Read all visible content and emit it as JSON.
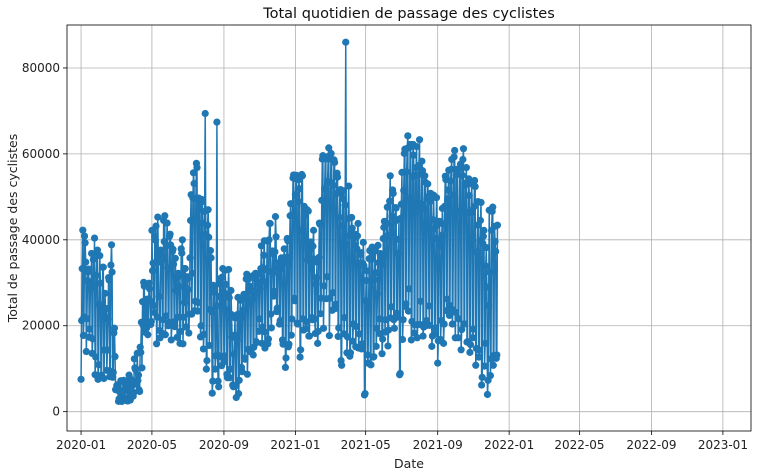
{
  "chart_data": {
    "type": "line",
    "title": "Total quotidien de passage des cyclistes",
    "xlabel": "Date",
    "ylabel": "Total de passage des cyclistes",
    "xlim": [
      "2019-12-08",
      "2023-02-18"
    ],
    "ylim": [
      -4500,
      90000
    ],
    "grid": true,
    "x_ticks": [
      "2020-01",
      "2020-05",
      "2020-09",
      "2021-01",
      "2021-05",
      "2021-09",
      "2022-01",
      "2022-05",
      "2022-09",
      "2023-01"
    ],
    "x_tick_dates": [
      "2020-01-01",
      "2020-05-01",
      "2020-09-01",
      "2021-01-01",
      "2021-05-01",
      "2021-09-01",
      "2022-01-01",
      "2022-05-01",
      "2022-09-01",
      "2023-01-01"
    ],
    "y_ticks": [
      0,
      20000,
      40000,
      60000,
      80000
    ],
    "y_tick_labels": [
      "0",
      "20000",
      "40000",
      "60000",
      "80000"
    ],
    "series": [
      {
        "color": "#1f77b4",
        "x_start": "2020-01-01",
        "x_step_days": 1,
        "values": [
          7530,
          21216,
          33286,
          42231,
          17751,
          22001,
          40874,
          39311,
          34812,
          14000,
          21633,
          30522,
          32506,
          33185,
          17324,
          19223,
          29622,
          28806,
          36826,
          13562,
          16963,
          35426,
          28815,
          40405,
          8599,
          12716,
          31722,
          36815,
          37591,
          7522,
          10941,
          24972,
          36311,
          29893,
          8200,
          8519,
          23718,
          33617,
          33624,
          7722,
          14346,
          27532,
          21911,
          23983,
          9617,
          14346,
          21531,
          31209,
          30623,
          8137,
          9419,
          34117,
          38838,
          32500,
          8004,
          9128,
          18325,
          19434,
          12836,
          5122,
          5138,
          6052,
          6235,
          5500,
          2400,
          3000,
          4600,
          3200,
          7200,
          2400,
          2400,
          4800,
          7100,
          7300,
          3200,
          3000,
          6300,
          5500,
          6200,
          2500,
          2500,
          4800,
          8500,
          7600,
          2700,
          3300,
          6800,
          7400,
          6200,
          3600,
          4400,
          12300,
          10200,
          9800,
          6400,
          6500,
          13600,
          7200,
          8500,
          5100,
          4700,
          15000,
          13800,
          20800,
          10200,
          25600,
          20100,
          30100,
          29200,
          18500,
          21000,
          25800,
          19500,
          26200,
          17900,
          20500,
          29900,
          28600,
          25800,
          20300,
          21000,
          42200,
          32800,
          34600,
          24700,
          23100,
          40800,
          39900,
          43200,
          15800,
          22000,
          45300,
          34800,
          26800,
          18900,
          17200,
          37600,
          36300,
          35300,
          18200,
          21400,
          44500,
          39600,
          45600,
          17900,
          22300,
          38600,
          43900,
          33400,
          20000,
          20800,
          40800,
          41300,
          38800,
          16700,
          20100,
          37300,
          37800,
          34300,
          20900,
          19800,
          35700,
          28200,
          30900,
          17300,
          22000,
          32200,
          31500,
          29100,
          15900,
          18700,
          37900,
          36900,
          40000,
          15800,
          22000,
          33300,
          25400,
          33300,
          19700,
          19700,
          31400,
          30900,
          28400,
          18300,
          22700,
          35800,
          44500,
          50500,
          22700,
          32200,
          49700,
          55600,
          53100,
          23500,
          25700,
          49600,
          57800,
          56800,
          23400,
          25400,
          49700,
          48400,
          47000,
          17400,
          20000,
          49400,
          48900,
          43900,
          14600,
          18000,
          46600,
          69400,
          41200,
          9900,
          11900,
          43400,
          47000,
          40600,
          15400,
          23800,
          37500,
          35800,
          23300,
          4300,
          7100,
          29400,
          27800,
          28400,
          9900,
          13000,
          24600,
          67400,
          13200,
          7100,
          5800,
          26800,
          29700,
          31000,
          12800,
          10700,
          31300,
          33300,
          27900,
          11600,
          13000,
          32900,
          29600,
          23600,
          8700,
          7900,
          27400,
          33100,
          26500,
          7900,
          9900,
          28200,
          22600,
          17400,
          6200,
          5800,
          13400,
          17800,
          21800,
          6000,
          3300,
          16600,
          22600,
          26600,
          4200,
          7300,
          22700,
          25900,
          21800,
          10300,
          9300,
          26100,
          23600,
          27300,
          12500,
          12200,
          26300,
          30900,
          32000,
          8700,
          14500,
          30900,
          29300,
          27900,
          14000,
          14100,
          28200,
          26100,
          31600,
          13200,
          15000,
          31200,
          27800,
          32200,
          16300,
          16100,
          30400,
          29800,
          32000,
          18700,
          21600,
          28600,
          33300,
          38600,
          15900,
          19700,
          33500,
          36400,
          39800,
          14800,
          18500,
          30200,
          33000,
          39700,
          15800,
          16900,
          40000,
          43800,
          43800,
          22700,
          19500,
          32500,
          37400,
          36700,
          26900,
          28000,
          37200,
          45400,
          40700,
          23300,
          24100,
          33400,
          32200,
          34700,
          20400,
          21200,
          33900,
          35800,
          33300,
          16700,
          15700,
          34900,
          37900,
          35900,
          10300,
          12500,
          34700,
          40300,
          39800,
          15100,
          15700,
          35900,
          45600,
          48400,
          17800,
          21600,
          45800,
          54400,
          55100,
          26400,
          25800,
          50500,
          54200,
          55000,
          20600,
          20400,
          48900,
          54000,
          51900,
          12700,
          14400,
          42200,
          55200,
          54900,
          21600,
          19000,
          47800,
          46600,
          45800,
          19300,
          20900,
          47000,
          35300,
          46700,
          17600,
          17600,
          37800,
          39500,
          38300,
          21900,
          21400,
          38500,
          42200,
          35500,
          21600,
          18200,
          29700,
          31200,
          34800,
          15900,
          18700,
          35900,
          43900,
          43600,
          22800,
          26400,
          49200,
          58800,
          59600,
          19400,
          29300,
          51900,
          59000,
          58800,
          26300,
          31400,
          53600,
          59400,
          61400,
          17700,
          26400,
          53400,
          60100,
          58700,
          23600,
          27700,
          52700,
          58600,
          58000,
          24000,
          25000,
          50700,
          55500,
          54600,
          17500,
          19500,
          45200,
          51000,
          51700,
          11900,
          10800,
          43300,
          49600,
          51400,
          18100,
          21900,
          48100,
          86000,
          38900,
          13700,
          17400,
          44900,
          52500,
          41000,
          12900,
          13700,
          41600,
          45200,
          42700,
          16400,
          20400,
          40400,
          38800,
          41300,
          15100,
          19800,
          37900,
          40900,
          43800,
          14800,
          18100,
          34500,
          36600,
          37000,
          14600,
          15800,
          34500,
          39400,
          34000,
          3900,
          4200,
          25800,
          30500,
          32800,
          13200,
          11300,
          24600,
          35600,
          37500,
          11000,
          10900,
          35400,
          38300,
          36300,
          12700,
          12800,
          30700,
          37400,
          32300,
          15200,
          19400,
          27400,
          38700,
          34700,
          18200,
          21600,
          36800,
          35600,
          34300,
          13500,
          16900,
          40300,
          42900,
          44300,
          18500,
          21400,
          40800,
          43800,
          47600,
          15300,
          19000,
          41100,
          49000,
          54900,
          21800,
          24400,
          45500,
          51600,
          50800,
          21400,
          19400,
          44300,
          47500,
          47400,
          22900,
          22000,
          36800,
          40100,
          44800,
          8600,
          8900,
          45000,
          48300,
          55700,
          16800,
          21400,
          51500,
          60100,
          61100,
          24500,
          25100,
          55800,
          61300,
          64200,
          23400,
          28600,
          49500,
          62200,
          61700,
          16700,
          21000,
          54700,
          62200,
          59700,
          18300,
          20200,
          55100,
          56800,
          61700,
          17200,
          20300,
          55100,
          57300,
          63300,
          20300,
          25700,
          48400,
          58300,
          56100,
          17600,
          19700,
          47300,
          54900,
          53400,
          20000,
          21200,
          49600,
          53000,
          50100,
          24600,
          20100,
          48900,
          50800,
          49900,
          15200,
          17600,
          44700,
          50400,
          42500,
          18000,
          19500,
          40300,
          49800,
          43400,
          11300,
          16500,
          39900,
          44300,
          38400,
          16800,
          21200,
          41000,
          47300,
          43700,
          15900,
          20400,
          47800,
          54800,
          54000,
          23500,
          26200,
          49500,
          51600,
          56200,
          22400,
          24700,
          53700,
          56400,
          58700,
          20400,
          23700,
          50400,
          59300,
          60800,
          17200,
          23100,
          55100,
          56400,
          56400,
          17200,
          21600,
          46600,
          56700,
          57600,
          14400,
          19100,
          55000,
          58700,
          61200,
          20400,
          20400,
          52700,
          53200,
          56800,
          16200,
          16300,
          46400,
          54200,
          50300,
          13800,
          15600,
          46300,
          53000,
          46900,
          17200,
          19200,
          47700,
          53800,
          52400,
          10800,
          14700,
          37200,
          43400,
          48900,
          12700,
          14300,
          39800,
          44500,
          48700,
          6200,
          8000,
          39200,
          40800,
          42200,
          10600,
          15900,
          33900,
          38200,
          29000,
          4000,
          7300,
          24700,
          46900,
          32500,
          8400,
          12300,
          42200,
          46600,
          47600,
          10800,
          13100,
          43100,
          39600,
          37300,
          12400,
          13200,
          43400
        ]
      }
    ]
  }
}
